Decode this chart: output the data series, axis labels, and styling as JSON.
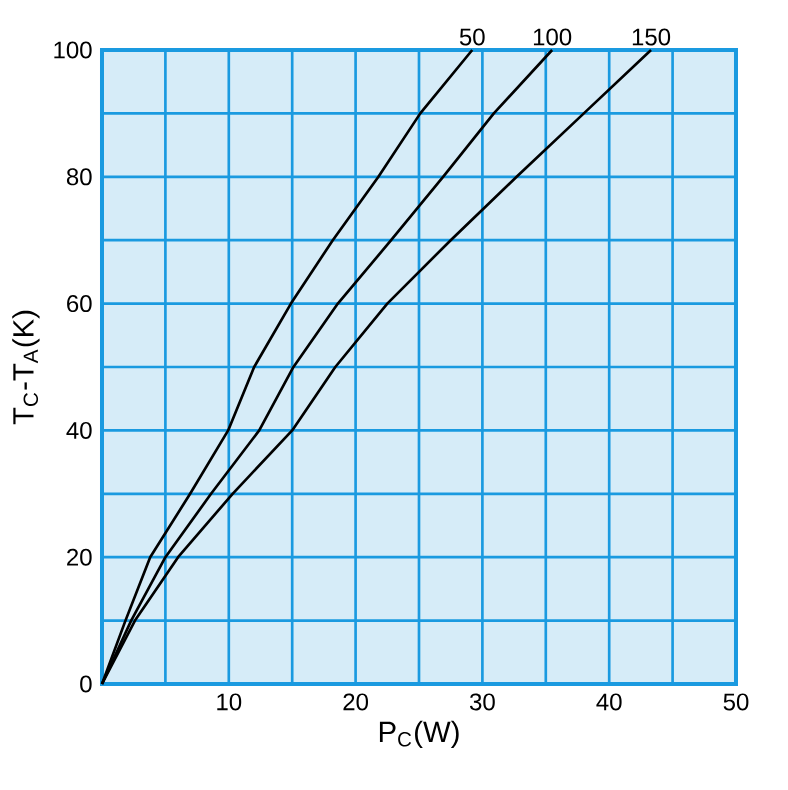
{
  "chart_data": {
    "type": "line",
    "xlabel": "P$_{C}$(W)",
    "ylabel": "T$_{C}$-T$_{A}$(K)",
    "xlim": [
      0,
      50
    ],
    "ylim": [
      0,
      100
    ],
    "xticks": [
      {
        "value": 0,
        "label": null
      },
      {
        "value": 5,
        "label": null
      },
      10,
      {
        "value": 15,
        "label": null
      },
      20,
      {
        "value": 25,
        "label": null
      },
      30,
      {
        "value": 35,
        "label": null
      },
      40,
      {
        "value": 45,
        "label": null
      },
      50
    ],
    "yticks": [
      0,
      {
        "value": 10,
        "label": null
      },
      20,
      {
        "value": 30,
        "label": null
      },
      40,
      {
        "value": 50,
        "label": null
      },
      60,
      {
        "value": 70,
        "label": null
      },
      80,
      {
        "value": 90,
        "label": null
      },
      100
    ],
    "grid": true,
    "legend": false,
    "marker": "none",
    "line_style": "solid",
    "series": [
      {
        "name": "50",
        "color": "#000000",
        "x": [
          0,
          1.85,
          3.8,
          6.95,
          9.95,
          12.0,
          14.9,
          18.2,
          21.8,
          25.1,
          29.2
        ],
        "values": [
          0,
          10,
          20,
          30,
          40,
          50,
          60,
          70,
          80,
          90,
          100
        ]
      },
      {
        "name": "100",
        "color": "#000000",
        "x": [
          0,
          2.3,
          5.0,
          8.6,
          12.4,
          15.1,
          18.6,
          22.8,
          26.9,
          30.9,
          35.5
        ],
        "values": [
          0,
          10,
          20,
          30,
          40,
          50,
          60,
          70,
          80,
          90,
          100
        ]
      },
      {
        "name": "150",
        "color": "#000000",
        "x": [
          0,
          2.6,
          6.0,
          10.3,
          15.0,
          18.4,
          22.5,
          27.5,
          32.7,
          38.0,
          43.3
        ],
        "values": [
          0,
          10,
          20,
          30,
          40,
          50,
          60,
          70,
          80,
          90,
          100
        ]
      }
    ]
  }
}
